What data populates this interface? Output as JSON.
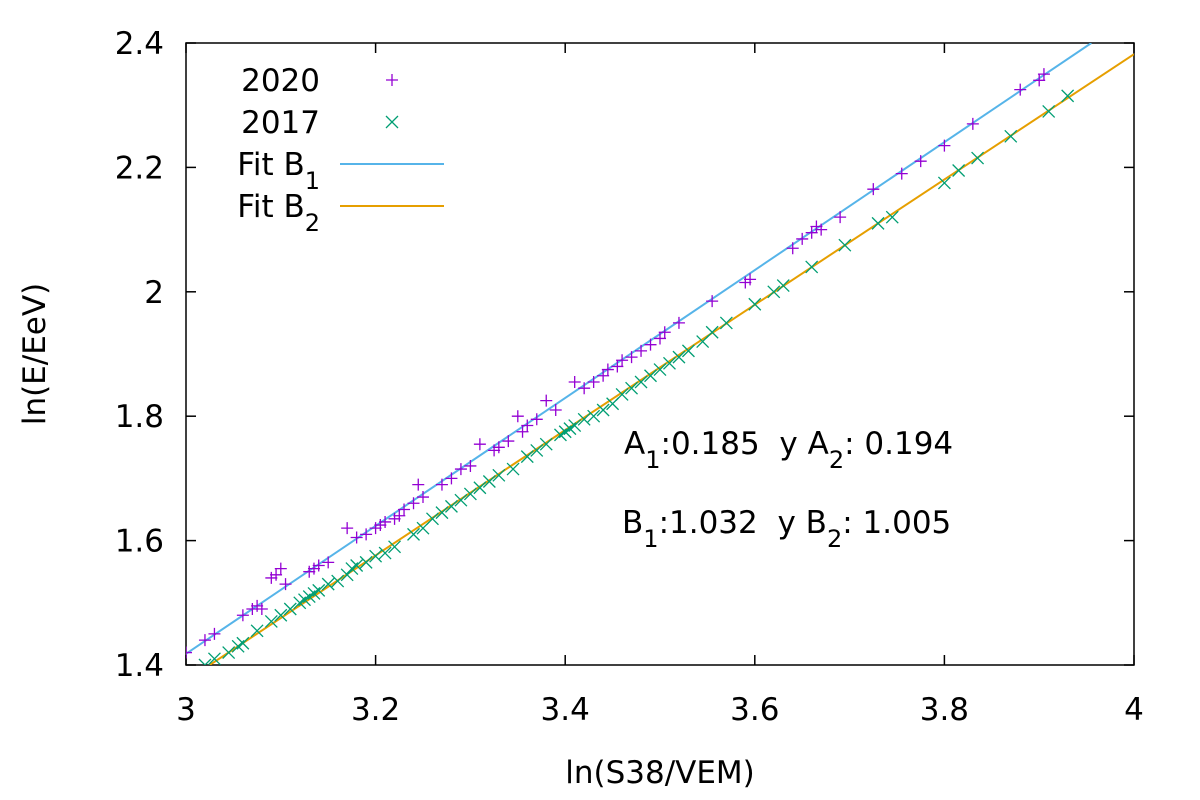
{
  "chart_data": {
    "type": "scatter",
    "xlabel": "ln(S38/VEM)",
    "ylabel": "ln(E/EeV)",
    "xlim": [
      3,
      4
    ],
    "ylim": [
      1.4,
      2.4
    ],
    "x_ticks": [
      {
        "value": 3.0,
        "label": "3"
      },
      {
        "value": 3.2,
        "label": "3.2"
      },
      {
        "value": 3.4,
        "label": "3.4"
      },
      {
        "value": 3.6,
        "label": "3.6"
      },
      {
        "value": 3.8,
        "label": "3.8"
      },
      {
        "value": 4.0,
        "label": "4"
      }
    ],
    "y_ticks": [
      {
        "value": 1.4,
        "label": "1.4"
      },
      {
        "value": 1.6,
        "label": "1.6"
      },
      {
        "value": 1.8,
        "label": "1.8"
      },
      {
        "value": 2.0,
        "label": "2"
      },
      {
        "value": 2.2,
        "label": "2.2"
      },
      {
        "value": 2.4,
        "label": "2.4"
      }
    ],
    "grid": false,
    "legend_position": "top-left",
    "series": [
      {
        "name": "2020",
        "kind": "points",
        "marker": "plus",
        "color": "#9400d3",
        "points": [
          [
            3.0,
            1.42
          ],
          [
            3.02,
            1.44
          ],
          [
            3.03,
            1.45
          ],
          [
            3.06,
            1.48
          ],
          [
            3.07,
            1.49
          ],
          [
            3.075,
            1.495
          ],
          [
            3.08,
            1.49
          ],
          [
            3.09,
            1.54
          ],
          [
            3.095,
            1.545
          ],
          [
            3.1,
            1.555
          ],
          [
            3.105,
            1.53
          ],
          [
            3.13,
            1.55
          ],
          [
            3.135,
            1.555
          ],
          [
            3.14,
            1.56
          ],
          [
            3.15,
            1.565
          ],
          [
            3.17,
            1.62
          ],
          [
            3.18,
            1.605
          ],
          [
            3.19,
            1.61
          ],
          [
            3.2,
            1.62
          ],
          [
            3.205,
            1.625
          ],
          [
            3.21,
            1.63
          ],
          [
            3.22,
            1.635
          ],
          [
            3.225,
            1.64
          ],
          [
            3.23,
            1.65
          ],
          [
            3.24,
            1.66
          ],
          [
            3.245,
            1.69
          ],
          [
            3.25,
            1.67
          ],
          [
            3.27,
            1.69
          ],
          [
            3.28,
            1.7
          ],
          [
            3.29,
            1.715
          ],
          [
            3.3,
            1.72
          ],
          [
            3.31,
            1.755
          ],
          [
            3.325,
            1.745
          ],
          [
            3.33,
            1.75
          ],
          [
            3.34,
            1.76
          ],
          [
            3.35,
            1.8
          ],
          [
            3.355,
            1.775
          ],
          [
            3.36,
            1.785
          ],
          [
            3.37,
            1.795
          ],
          [
            3.38,
            1.825
          ],
          [
            3.39,
            1.81
          ],
          [
            3.41,
            1.855
          ],
          [
            3.42,
            1.845
          ],
          [
            3.43,
            1.855
          ],
          [
            3.44,
            1.865
          ],
          [
            3.445,
            1.875
          ],
          [
            3.455,
            1.88
          ],
          [
            3.46,
            1.89
          ],
          [
            3.47,
            1.895
          ],
          [
            3.48,
            1.905
          ],
          [
            3.49,
            1.915
          ],
          [
            3.5,
            1.925
          ],
          [
            3.505,
            1.935
          ],
          [
            3.52,
            1.95
          ],
          [
            3.555,
            1.985
          ],
          [
            3.59,
            2.015
          ],
          [
            3.595,
            2.02
          ],
          [
            3.64,
            2.07
          ],
          [
            3.65,
            2.085
          ],
          [
            3.66,
            2.095
          ],
          [
            3.665,
            2.105
          ],
          [
            3.67,
            2.1
          ],
          [
            3.69,
            2.12
          ],
          [
            3.725,
            2.165
          ],
          [
            3.755,
            2.19
          ],
          [
            3.775,
            2.21
          ],
          [
            3.8,
            2.235
          ],
          [
            3.83,
            2.27
          ],
          [
            3.88,
            2.325
          ],
          [
            3.9,
            2.34
          ],
          [
            3.905,
            2.35
          ]
        ]
      },
      {
        "name": "2017",
        "kind": "points",
        "marker": "cross",
        "color": "#009e73",
        "points": [
          [
            3.02,
            1.4
          ],
          [
            3.03,
            1.41
          ],
          [
            3.045,
            1.42
          ],
          [
            3.055,
            1.43
          ],
          [
            3.06,
            1.435
          ],
          [
            3.075,
            1.455
          ],
          [
            3.09,
            1.47
          ],
          [
            3.1,
            1.48
          ],
          [
            3.11,
            1.49
          ],
          [
            3.12,
            1.5
          ],
          [
            3.125,
            1.505
          ],
          [
            3.13,
            1.51
          ],
          [
            3.135,
            1.515
          ],
          [
            3.14,
            1.52
          ],
          [
            3.15,
            1.53
          ],
          [
            3.16,
            1.535
          ],
          [
            3.17,
            1.545
          ],
          [
            3.175,
            1.555
          ],
          [
            3.18,
            1.56
          ],
          [
            3.19,
            1.565
          ],
          [
            3.2,
            1.575
          ],
          [
            3.21,
            1.58
          ],
          [
            3.22,
            1.59
          ],
          [
            3.24,
            1.61
          ],
          [
            3.25,
            1.62
          ],
          [
            3.26,
            1.635
          ],
          [
            3.27,
            1.645
          ],
          [
            3.28,
            1.655
          ],
          [
            3.29,
            1.665
          ],
          [
            3.3,
            1.675
          ],
          [
            3.31,
            1.685
          ],
          [
            3.32,
            1.695
          ],
          [
            3.33,
            1.705
          ],
          [
            3.345,
            1.715
          ],
          [
            3.36,
            1.735
          ],
          [
            3.37,
            1.745
          ],
          [
            3.38,
            1.755
          ],
          [
            3.395,
            1.77
          ],
          [
            3.4,
            1.775
          ],
          [
            3.405,
            1.78
          ],
          [
            3.41,
            1.785
          ],
          [
            3.42,
            1.795
          ],
          [
            3.43,
            1.8
          ],
          [
            3.44,
            1.81
          ],
          [
            3.45,
            1.82
          ],
          [
            3.46,
            1.835
          ],
          [
            3.47,
            1.845
          ],
          [
            3.48,
            1.855
          ],
          [
            3.49,
            1.865
          ],
          [
            3.5,
            1.875
          ],
          [
            3.51,
            1.885
          ],
          [
            3.52,
            1.895
          ],
          [
            3.53,
            1.905
          ],
          [
            3.545,
            1.92
          ],
          [
            3.555,
            1.935
          ],
          [
            3.57,
            1.95
          ],
          [
            3.6,
            1.98
          ],
          [
            3.62,
            2.0
          ],
          [
            3.63,
            2.01
          ],
          [
            3.66,
            2.04
          ],
          [
            3.695,
            2.075
          ],
          [
            3.73,
            2.11
          ],
          [
            3.745,
            2.12
          ],
          [
            3.8,
            2.175
          ],
          [
            3.815,
            2.195
          ],
          [
            3.835,
            2.215
          ],
          [
            3.87,
            2.25
          ],
          [
            3.91,
            2.29
          ],
          [
            3.93,
            2.315
          ]
        ]
      },
      {
        "name": "Fit B₁",
        "kind": "line",
        "color": "#56b4e9",
        "points": [
          [
            3.0,
            1.418
          ],
          [
            3.955,
            2.4
          ]
        ]
      },
      {
        "name": "Fit B₂",
        "kind": "line",
        "color": "#e69f00",
        "points": [
          [
            3.025,
            1.4
          ],
          [
            4.0,
            2.382
          ]
        ]
      }
    ],
    "annotations": [
      "A₁:0.185  y A₂: 0.194",
      "B₁:1.032  y B₂: 1.005"
    ]
  }
}
